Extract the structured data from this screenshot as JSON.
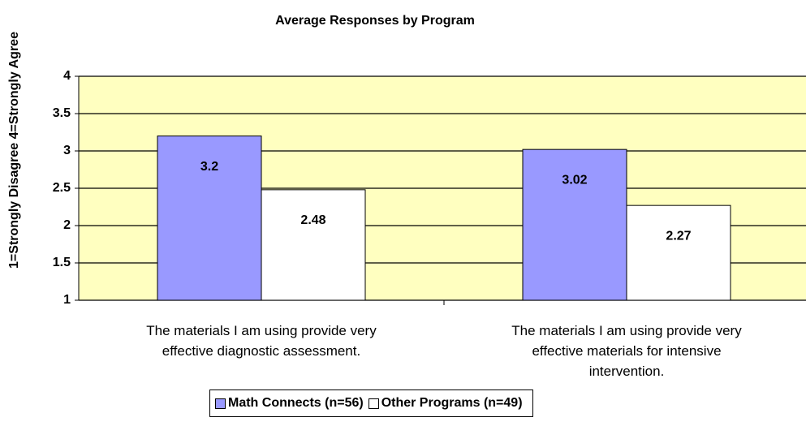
{
  "chart_data": {
    "type": "bar",
    "title": "Average Responses by Program",
    "y_axis_label": "1=Strongly Disagree  4=Strongly Agree",
    "categories": [
      "The materials I am using provide very effective diagnostic assessment.",
      "The materials I am using provide very effective materials for intensive intervention."
    ],
    "series": [
      {
        "name": "Math Connects (n=56)",
        "color": "#9999ff",
        "values": [
          3.2,
          3.02
        ]
      },
      {
        "name": "Other Programs (n=49)",
        "color": "#ffffff",
        "values": [
          2.48,
          2.27
        ]
      }
    ],
    "ylim": [
      1,
      4
    ],
    "yticks": [
      1,
      1.5,
      2,
      2.5,
      3,
      3.5,
      4
    ],
    "grid": true,
    "background": "#ffffc0"
  }
}
